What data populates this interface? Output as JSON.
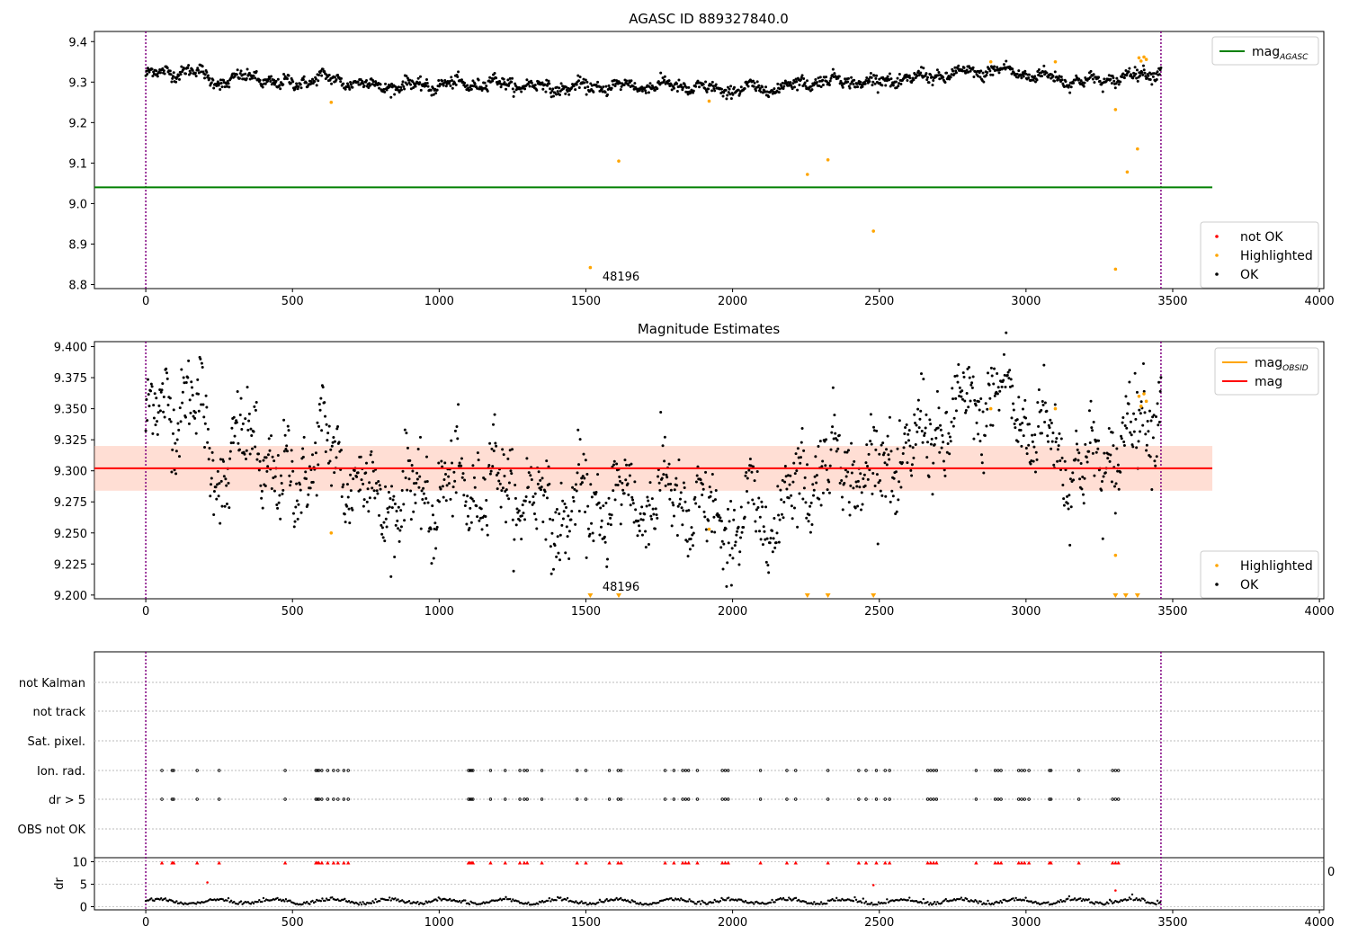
{
  "colors": {
    "ok": "#000000",
    "highlighted": "#ffa500",
    "not_ok": "#ff0000",
    "agasc": "#008000",
    "mag": "#ff0000",
    "mag_obsid": "#ffa500",
    "band_fill": "#ffb6a0",
    "obs_line": "#800080"
  },
  "chart_data": [
    {
      "type": "scatter",
      "title": "AGASC ID 889327840.0",
      "xlim": [
        -175,
        4015
      ],
      "ylim": [
        8.79,
        9.425
      ],
      "xticks": [
        "0",
        "500",
        "1000",
        "1500",
        "2000",
        "2500",
        "3000",
        "3500",
        "4000"
      ],
      "yticks": [
        "8.8",
        "8.9",
        "9.0",
        "9.1",
        "9.2",
        "9.3",
        "9.4"
      ],
      "obs_boundaries": [
        0,
        3460
      ],
      "obs_label": "48196",
      "obs_label_x": 1730,
      "ok_series": {
        "x_start": 0,
        "x_end": 3460,
        "count": 1450,
        "trend": [
          [
            0,
            9.318
          ],
          [
            150,
            9.33
          ],
          [
            250,
            9.3
          ],
          [
            380,
            9.315
          ],
          [
            450,
            9.292
          ],
          [
            600,
            9.31
          ],
          [
            800,
            9.29
          ],
          [
            1000,
            9.293
          ],
          [
            1200,
            9.298
          ],
          [
            1400,
            9.285
          ],
          [
            1600,
            9.29
          ],
          [
            1800,
            9.292
          ],
          [
            1950,
            9.28
          ],
          [
            2150,
            9.286
          ],
          [
            2300,
            9.305
          ],
          [
            2500,
            9.3
          ],
          [
            2700,
            9.316
          ],
          [
            2900,
            9.33
          ],
          [
            3050,
            9.315
          ],
          [
            3200,
            9.3
          ],
          [
            3320,
            9.31
          ],
          [
            3460,
            9.33
          ]
        ],
        "noise": 0.016
      },
      "highlighted_points": [
        [
          632,
          9.25
        ],
        [
          1515,
          8.842
        ],
        [
          1612,
          9.105
        ],
        [
          1920,
          9.253
        ],
        [
          2255,
          9.072
        ],
        [
          2325,
          9.108
        ],
        [
          2480,
          8.932
        ],
        [
          2880,
          9.35
        ],
        [
          3100,
          9.35
        ],
        [
          3305,
          9.232
        ],
        [
          3305,
          8.838
        ],
        [
          3345,
          9.078
        ],
        [
          3380,
          9.135
        ],
        [
          3385,
          9.36
        ],
        [
          3392,
          9.352
        ],
        [
          3402,
          9.362
        ],
        [
          3410,
          9.356
        ]
      ],
      "agasc_mag": 9.04,
      "agasc_xrange": [
        -175,
        3635
      ],
      "legend_upper": [
        {
          "label": "mag",
          "sub": "AGASC",
          "color": "#008000"
        }
      ],
      "legend_lower": [
        {
          "label": "not OK",
          "color": "#ff0000"
        },
        {
          "label": "Highlighted",
          "color": "#ffa500"
        },
        {
          "label": "OK",
          "color": "#000000"
        }
      ]
    },
    {
      "type": "scatter",
      "title": "Magnitude Estimates",
      "xlim": [
        -175,
        4015
      ],
      "ylim": [
        9.197,
        9.404
      ],
      "xticks": [
        "0",
        "500",
        "1000",
        "1500",
        "2000",
        "2500",
        "3000",
        "3500",
        "4000"
      ],
      "yticks": [
        "9.200",
        "9.225",
        "9.250",
        "9.275",
        "9.300",
        "9.325",
        "9.350",
        "9.375",
        "9.400"
      ],
      "obs_boundaries": [
        0,
        3460
      ],
      "obs_label": "48196",
      "obs_label_x": 1730,
      "mag": 9.302,
      "mag_band": [
        9.284,
        9.32
      ],
      "mag_xrange": [
        -175,
        3635
      ],
      "clipped_markers_x": [
        1515,
        1612,
        2255,
        2325,
        2480,
        3305,
        3340,
        3380
      ],
      "legend_upper": [
        {
          "label": "mag",
          "sub": "OBSID",
          "color": "#ffa500"
        },
        {
          "label": "mag",
          "color": "#ff0000"
        }
      ],
      "legend_lower": [
        {
          "label": "Highlighted",
          "color": "#ffa500"
        },
        {
          "label": "OK",
          "color": "#000000"
        }
      ]
    },
    {
      "type": "scatter",
      "title": "",
      "category_labels": [
        "not Kalman",
        "not track",
        "Sat. pixel.",
        "Ion. rad.",
        "dr > 5",
        "OBS not OK"
      ],
      "flag_events_x": [
        55,
        90,
        95,
        175,
        250,
        475,
        580,
        585,
        590,
        600,
        620,
        640,
        655,
        675,
        690,
        1100,
        1105,
        1110,
        1115,
        1175,
        1225,
        1275,
        1290,
        1300,
        1350,
        1470,
        1500,
        1580,
        1610,
        1620,
        1770,
        1800,
        1830,
        1840,
        1850,
        1880,
        1965,
        1975,
        1985,
        2095,
        2185,
        2215,
        2325,
        2430,
        2455,
        2490,
        2520,
        2535,
        2665,
        2675,
        2685,
        2695,
        2830,
        2895,
        2905,
        2915,
        2975,
        2985,
        2995,
        3010,
        3080,
        3085,
        3180,
        3295,
        3305,
        3315
      ],
      "dr_panel": {
        "ylabel": "dr",
        "yticks": [
          "0",
          "5",
          "10"
        ],
        "ylim": [
          -0.3,
          10.3
        ],
        "outliers": [
          [
            210,
            5.4
          ],
          [
            2480,
            4.8
          ],
          [
            3305,
            3.6
          ]
        ],
        "partial_label": "0"
      },
      "xticks": [
        "0",
        "500",
        "1000",
        "1500",
        "2000",
        "2500",
        "3000",
        "3500",
        "4000"
      ],
      "xlim": [
        -175,
        4015
      ],
      "obs_boundaries": [
        0,
        3460
      ]
    }
  ]
}
